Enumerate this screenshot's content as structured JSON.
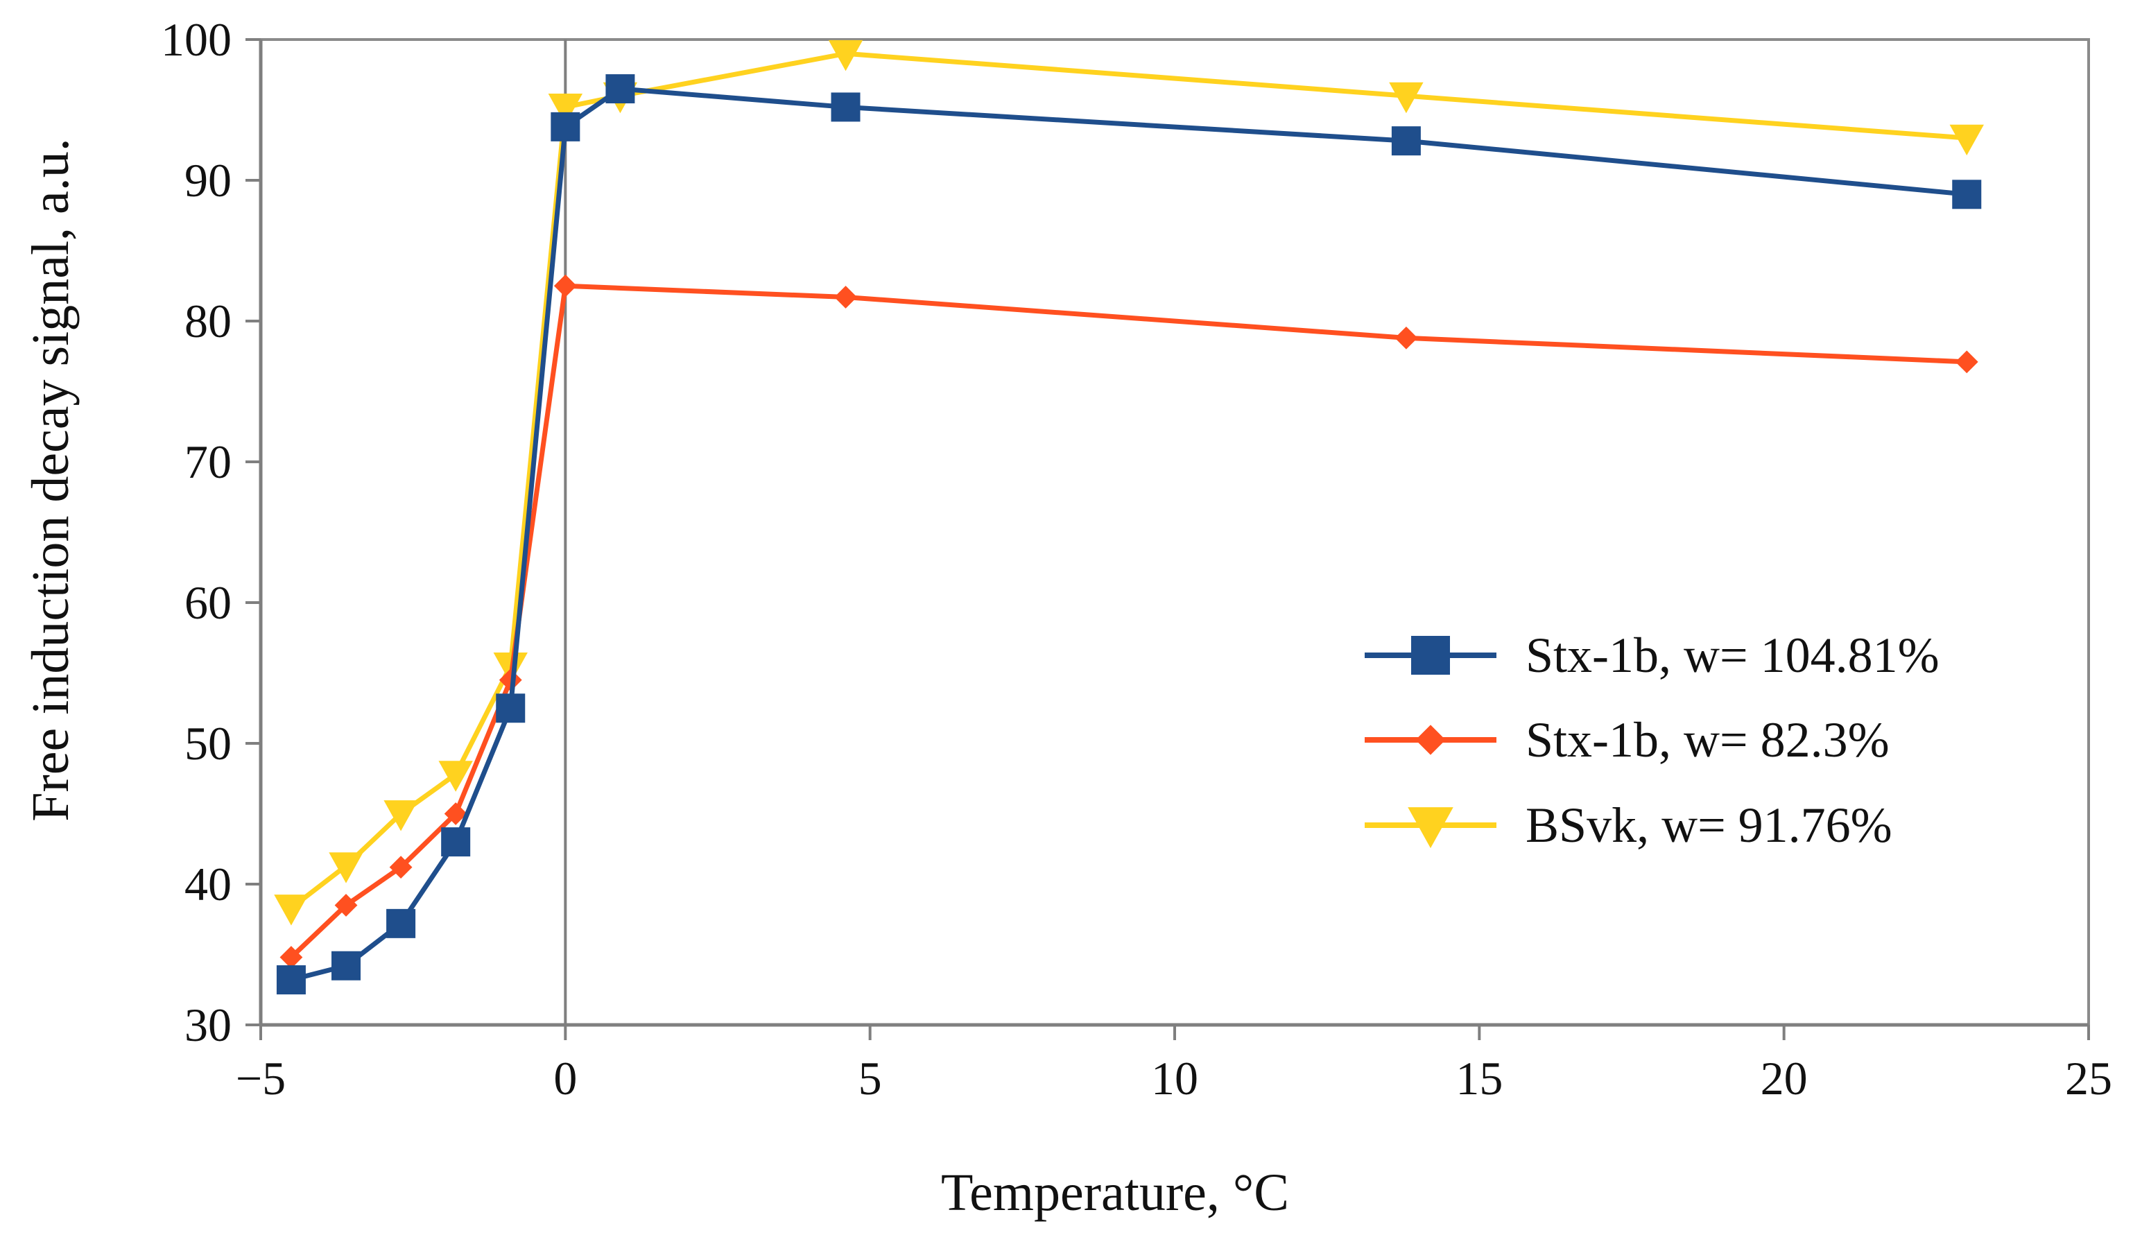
{
  "chart_data": {
    "type": "line",
    "title": "",
    "xlabel": "Temperature, °C",
    "ylabel": "Free induction decay signal, a.u.",
    "xlim": [
      -5,
      25
    ],
    "ylim": [
      30,
      100
    ],
    "xticks": [
      -5,
      0,
      5,
      10,
      15,
      20,
      25
    ],
    "xtick_labels": [
      "−5",
      "0",
      "5",
      "10",
      "15",
      "20",
      "25"
    ],
    "yticks": [
      30,
      40,
      50,
      60,
      70,
      80,
      90,
      100
    ],
    "ytick_labels": [
      "30",
      "40",
      "50",
      "60",
      "70",
      "80",
      "90",
      "100"
    ],
    "grid": false,
    "vertical_reference_line_x": 0,
    "legend_position": "center-right",
    "series": [
      {
        "name": "Stx-1b, w= 104.81%",
        "color": "#1f4e8c",
        "marker": "square",
        "x": [
          -4.5,
          -3.6,
          -2.7,
          -1.8,
          -0.9,
          0,
          0.9,
          4.6,
          13.8,
          23
        ],
        "y": [
          33.2,
          34.2,
          37.2,
          43.0,
          52.5,
          93.8,
          96.5,
          95.2,
          92.8,
          89.0
        ]
      },
      {
        "name": "Stx-1b, w= 82.3%",
        "color": "#ff5020",
        "marker": "diamond",
        "x": [
          -4.5,
          -3.6,
          -2.7,
          -1.8,
          -0.9,
          0,
          4.6,
          13.8,
          23
        ],
        "y": [
          34.8,
          38.5,
          41.2,
          45.0,
          54.5,
          82.5,
          81.7,
          78.8,
          77.1
        ]
      },
      {
        "name": "BSvk, w= 91.76%",
        "color": "#ffd21f",
        "marker": "triangle-down",
        "x": [
          -4.5,
          -3.6,
          -2.7,
          -1.8,
          -0.9,
          0,
          0.9,
          4.6,
          13.8,
          23
        ],
        "y": [
          38.3,
          41.3,
          45.0,
          47.8,
          55.5,
          95.2,
          96.0,
          99.0,
          96.0,
          93.0
        ]
      }
    ]
  }
}
